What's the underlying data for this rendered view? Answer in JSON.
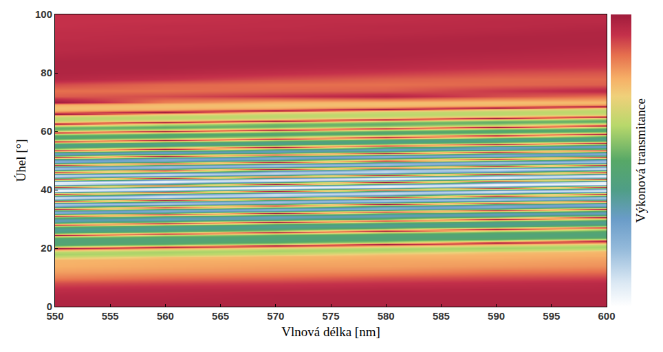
{
  "chart_data": {
    "type": "heatmap",
    "x_label": "Vlnová délka [nm]",
    "y_label": "Úhel [°]",
    "x": [
      550,
      560,
      570,
      580,
      590,
      600
    ],
    "y": [
      0,
      2,
      4,
      6,
      8,
      10,
      12,
      14,
      16,
      17,
      17.5,
      18,
      18.5,
      19,
      19.5,
      20,
      20.5,
      21,
      21.5,
      22,
      22.5,
      23,
      23.5,
      24,
      24.5,
      25,
      25.5,
      26,
      26.5,
      27,
      27.5,
      28,
      28.5,
      29,
      29.5,
      30,
      30.5,
      31,
      31.5,
      32,
      32.5,
      33,
      33.5,
      34,
      34.5,
      35,
      35.5,
      36,
      36.5,
      37,
      37.5,
      38,
      38.5,
      39,
      39.5,
      40,
      40.5,
      41,
      41.5,
      42,
      42.5,
      43,
      43.5,
      44,
      44.5,
      45,
      45.5,
      46,
      46.5,
      47,
      47.5,
      48,
      48.5,
      49,
      49.5,
      50,
      50.5,
      51,
      51.5,
      52,
      52.5,
      53,
      53.5,
      54,
      54.5,
      55,
      55.5,
      56,
      56.5,
      57,
      57.5,
      58,
      58.5,
      59,
      59.5,
      60,
      60.5,
      61,
      61.5,
      62,
      62.5,
      63,
      63.5,
      64,
      64.5,
      65,
      65.5,
      66,
      66.5,
      67,
      67.5,
      68,
      68.5,
      69,
      69.5,
      70,
      72,
      74,
      76,
      78,
      80,
      82,
      84,
      86,
      88,
      90,
      92,
      94,
      96,
      98,
      100
    ],
    "z": [
      [
        0.97,
        0.97,
        0.97,
        0.97,
        0.97,
        0.97
      ],
      [
        0.97,
        0.97,
        0.97,
        0.97,
        0.97,
        0.97
      ],
      [
        0.96,
        0.96,
        0.97,
        0.97,
        0.97,
        0.97
      ],
      [
        0.94,
        0.95,
        0.95,
        0.96,
        0.96,
        0.96
      ],
      [
        0.9,
        0.91,
        0.92,
        0.93,
        0.94,
        0.95
      ],
      [
        0.84,
        0.86,
        0.87,
        0.89,
        0.9,
        0.91
      ],
      [
        0.8,
        0.81,
        0.82,
        0.83,
        0.85,
        0.86
      ],
      [
        0.78,
        0.79,
        0.8,
        0.8,
        0.81,
        0.82
      ],
      [
        0.77,
        0.78,
        0.78,
        0.79,
        0.79,
        0.8
      ],
      [
        0.66,
        0.75,
        0.77,
        0.78,
        0.78,
        0.79
      ],
      [
        0.62,
        0.66,
        0.75,
        0.77,
        0.78,
        0.78
      ],
      [
        0.6,
        0.62,
        0.66,
        0.75,
        0.77,
        0.78
      ],
      [
        0.62,
        0.6,
        0.62,
        0.66,
        0.75,
        0.77
      ],
      [
        0.7,
        0.62,
        0.6,
        0.62,
        0.66,
        0.75
      ],
      [
        0.82,
        0.7,
        0.62,
        0.6,
        0.62,
        0.66
      ],
      [
        1,
        0.82,
        0.7,
        0.62,
        0.6,
        0.62
      ],
      [
        0.64,
        1,
        0.82,
        0.7,
        0.62,
        0.6
      ],
      [
        0.51,
        0.64,
        1,
        0.82,
        0.7,
        0.62
      ],
      [
        0.46,
        0.51,
        0.64,
        1,
        0.82,
        0.7
      ],
      [
        0.45,
        0.46,
        0.51,
        0.64,
        1,
        0.82
      ],
      [
        0.45,
        0.45,
        0.46,
        0.51,
        0.64,
        1
      ],
      [
        0.46,
        0.45,
        0.45,
        0.46,
        0.51,
        0.64
      ],
      [
        0.51,
        0.46,
        0.45,
        0.45,
        0.46,
        0.51
      ],
      [
        0.64,
        0.51,
        0.46,
        0.45,
        0.45,
        0.46
      ],
      [
        1,
        0.64,
        0.51,
        0.46,
        0.45,
        0.45
      ],
      [
        0.6,
        1,
        0.64,
        0.51,
        0.46,
        0.45
      ],
      [
        0.44,
        0.6,
        1,
        0.64,
        0.51,
        0.46
      ],
      [
        0.39,
        0.44,
        0.6,
        1,
        0.64,
        0.51
      ],
      [
        0.39,
        0.39,
        0.44,
        0.6,
        1,
        0.64
      ],
      [
        0.44,
        0.39,
        0.39,
        0.44,
        0.6,
        1
      ],
      [
        0.6,
        0.44,
        0.39,
        0.39,
        0.44,
        0.6
      ],
      [
        1,
        0.6,
        0.44,
        0.39,
        0.39,
        0.44
      ],
      [
        0.55,
        1,
        0.6,
        0.44,
        0.39,
        0.39
      ],
      [
        0.37,
        0.55,
        1,
        0.6,
        0.44,
        0.39
      ],
      [
        0.31,
        0.37,
        0.55,
        1,
        0.6,
        0.44
      ],
      [
        0.37,
        0.31,
        0.37,
        0.55,
        1,
        0.6
      ],
      [
        0.55,
        0.37,
        0.31,
        0.37,
        0.55,
        1
      ],
      [
        1,
        0.55,
        0.37,
        0.31,
        0.37,
        0.55
      ],
      [
        0.49,
        1,
        0.55,
        0.37,
        0.31,
        0.37
      ],
      [
        0.25,
        0.49,
        1,
        0.55,
        0.37,
        0.31
      ],
      [
        0.25,
        0.25,
        0.49,
        1,
        0.55,
        0.37
      ],
      [
        0.49,
        0.25,
        0.25,
        0.49,
        1,
        0.55
      ],
      [
        1,
        0.49,
        0.25,
        0.25,
        0.49,
        1
      ],
      [
        0.45,
        1,
        0.49,
        0.25,
        0.25,
        0.49
      ],
      [
        0.18,
        0.45,
        1,
        0.49,
        0.25,
        0.25
      ],
      [
        0.18,
        0.18,
        0.45,
        1,
        0.49,
        0.25
      ],
      [
        0.45,
        0.18,
        0.18,
        0.45,
        1,
        0.49
      ],
      [
        1,
        0.45,
        0.18,
        0.18,
        0.45,
        1
      ],
      [
        0.4,
        1,
        0.45,
        0.18,
        0.18,
        0.45
      ],
      [
        0.11,
        0.4,
        1,
        0.45,
        0.18,
        0.18
      ],
      [
        0.11,
        0.11,
        0.4,
        1,
        0.45,
        0.18
      ],
      [
        0.4,
        0.11,
        0.11,
        0.4,
        1,
        0.45
      ],
      [
        1,
        0.4,
        0.11,
        0.11,
        0.4,
        1
      ],
      [
        0.36,
        1,
        0.4,
        0.11,
        0.11,
        0.4
      ],
      [
        0.04,
        0.36,
        1,
        0.4,
        0.11,
        0.11
      ],
      [
        0.04,
        0.04,
        0.36,
        1,
        0.4,
        0.11
      ],
      [
        0.36,
        0.04,
        0.04,
        0.36,
        1,
        0.4
      ],
      [
        1,
        0.36,
        0.04,
        0.04,
        0.36,
        1
      ],
      [
        0.38,
        1,
        0.36,
        0.04,
        0.04,
        0.36
      ],
      [
        0.06,
        0.38,
        1,
        0.36,
        0.04,
        0.04
      ],
      [
        0.06,
        0.06,
        0.38,
        1,
        0.36,
        0.04
      ],
      [
        0.38,
        0.06,
        0.06,
        0.38,
        1,
        0.36
      ],
      [
        1,
        0.38,
        0.06,
        0.06,
        0.38,
        1
      ],
      [
        0.42,
        1,
        0.38,
        0.06,
        0.06,
        0.38
      ],
      [
        0.13,
        0.42,
        1,
        0.38,
        0.06,
        0.06
      ],
      [
        0.13,
        0.13,
        0.42,
        1,
        0.38,
        0.06
      ],
      [
        0.42,
        0.13,
        0.13,
        0.42,
        1,
        0.38
      ],
      [
        1,
        0.42,
        0.13,
        0.13,
        0.42,
        1
      ],
      [
        0.45,
        1,
        0.42,
        0.13,
        0.13,
        0.42
      ],
      [
        0.19,
        0.45,
        1,
        0.42,
        0.13,
        0.13
      ],
      [
        0.19,
        0.19,
        0.45,
        1,
        0.42,
        0.13
      ],
      [
        0.45,
        0.19,
        0.19,
        0.45,
        1,
        0.42
      ],
      [
        1,
        0.45,
        0.19,
        0.19,
        0.45,
        1
      ],
      [
        0.49,
        1,
        0.45,
        0.19,
        0.19,
        0.45
      ],
      [
        0.25,
        0.49,
        1,
        0.45,
        0.19,
        0.19
      ],
      [
        0.25,
        0.25,
        0.49,
        1,
        0.45,
        0.19
      ],
      [
        0.49,
        0.25,
        0.25,
        0.49,
        1,
        0.45
      ],
      [
        1,
        0.49,
        0.25,
        0.25,
        0.49,
        1
      ],
      [
        0.53,
        1,
        0.49,
        0.25,
        0.25,
        0.49
      ],
      [
        0.31,
        0.53,
        1,
        0.49,
        0.25,
        0.25
      ],
      [
        0.31,
        0.31,
        0.53,
        1,
        0.49,
        0.25
      ],
      [
        0.53,
        0.31,
        0.31,
        0.53,
        1,
        0.49
      ],
      [
        1,
        0.53,
        0.31,
        0.31,
        0.53,
        1
      ],
      [
        0.6,
        1,
        0.53,
        0.31,
        0.31,
        0.53
      ],
      [
        0.44,
        0.6,
        1,
        0.53,
        0.31,
        0.31
      ],
      [
        0.39,
        0.44,
        0.6,
        1,
        0.53,
        0.31
      ],
      [
        0.44,
        0.39,
        0.44,
        0.6,
        1,
        0.53
      ],
      [
        0.6,
        0.44,
        0.39,
        0.44,
        0.6,
        1
      ],
      [
        1,
        0.6,
        0.44,
        0.39,
        0.44,
        0.6
      ],
      [
        0.64,
        1,
        0.6,
        0.44,
        0.39,
        0.44
      ],
      [
        0.51,
        0.64,
        1,
        0.6,
        0.44,
        0.39
      ],
      [
        0.46,
        0.51,
        0.64,
        1,
        0.6,
        0.44
      ],
      [
        0.51,
        0.46,
        0.51,
        0.64,
        1,
        0.6
      ],
      [
        0.64,
        0.51,
        0.46,
        0.51,
        0.64,
        1
      ],
      [
        1,
        0.64,
        0.51,
        0.46,
        0.51,
        0.64
      ],
      [
        0.68,
        1,
        0.64,
        0.51,
        0.46,
        0.51
      ],
      [
        0.55,
        0.68,
        1,
        0.64,
        0.51,
        0.46
      ],
      [
        0.51,
        0.55,
        0.68,
        1,
        0.64,
        0.51
      ],
      [
        0.55,
        0.51,
        0.55,
        0.68,
        1,
        0.64
      ],
      [
        0.68,
        0.55,
        0.51,
        0.55,
        0.68,
        1
      ],
      [
        1,
        0.68,
        0.55,
        0.51,
        0.55,
        0.68
      ],
      [
        0.75,
        1,
        0.68,
        0.55,
        0.51,
        0.55
      ],
      [
        0.66,
        0.75,
        1,
        0.68,
        0.55,
        0.51
      ],
      [
        0.63,
        0.66,
        0.75,
        1,
        0.68,
        0.55
      ],
      [
        0.63,
        0.63,
        0.66,
        0.75,
        1,
        0.68
      ],
      [
        0.66,
        0.63,
        0.63,
        0.66,
        0.75,
        1
      ],
      [
        0.75,
        0.66,
        0.63,
        0.63,
        0.66,
        0.75
      ],
      [
        1,
        0.75,
        0.66,
        0.63,
        0.63,
        0.66
      ],
      [
        0.84,
        1,
        0.75,
        0.66,
        0.63,
        0.63
      ],
      [
        0.78,
        0.84,
        1,
        0.75,
        0.66,
        0.63
      ],
      [
        0.76,
        0.78,
        0.84,
        1,
        0.75,
        0.66
      ],
      [
        0.75,
        0.76,
        0.78,
        0.84,
        1,
        0.75
      ],
      [
        0.76,
        0.75,
        0.76,
        0.78,
        0.84,
        1
      ],
      [
        0.78,
        0.76,
        0.75,
        0.76,
        0.78,
        0.84
      ],
      [
        0.84,
        0.78,
        0.76,
        0.75,
        0.76,
        0.78
      ],
      [
        1,
        0.84,
        0.78,
        0.76,
        0.75,
        0.76
      ],
      [
        0.88,
        0.9,
        0.93,
        0.96,
        0.9,
        0.86
      ],
      [
        0.86,
        0.86,
        0.87,
        0.88,
        0.92,
        0.95
      ],
      [
        0.9,
        0.87,
        0.86,
        0.86,
        0.87,
        0.88
      ],
      [
        0.96,
        0.93,
        0.9,
        0.88,
        0.87,
        0.87
      ],
      [
        0.97,
        0.96,
        0.94,
        0.92,
        0.9,
        0.89
      ],
      [
        0.97,
        0.97,
        0.96,
        0.95,
        0.93,
        0.92
      ],
      [
        0.97,
        0.97,
        0.97,
        0.96,
        0.95,
        0.94
      ],
      [
        0.96,
        0.97,
        0.97,
        0.97,
        0.96,
        0.95
      ],
      [
        0.95,
        0.96,
        0.97,
        0.97,
        0.97,
        0.96
      ],
      [
        0.95,
        0.95,
        0.96,
        0.97,
        0.97,
        0.97
      ],
      [
        0.94,
        0.95,
        0.95,
        0.96,
        0.97,
        0.97
      ],
      [
        0.94,
        0.94,
        0.95,
        0.95,
        0.96,
        0.97
      ],
      [
        0.93,
        0.94,
        0.94,
        0.95,
        0.95,
        0.96
      ],
      [
        0.93,
        0.93,
        0.94,
        0.94,
        0.95,
        0.95
      ],
      [
        0.93,
        0.93,
        0.93,
        0.94,
        0.94,
        0.95
      ]
    ],
    "xlim": [
      550,
      600
    ],
    "ylim": [
      0,
      100
    ],
    "xticks": [
      550,
      555,
      560,
      565,
      570,
      575,
      580,
      585,
      590,
      595,
      600
    ],
    "yticks": [
      0,
      20,
      40,
      60,
      80,
      100
    ],
    "colorbar": {
      "title": "Výkonová transmitance",
      "range": [
        0,
        1
      ],
      "ticks": []
    },
    "grid": false
  }
}
